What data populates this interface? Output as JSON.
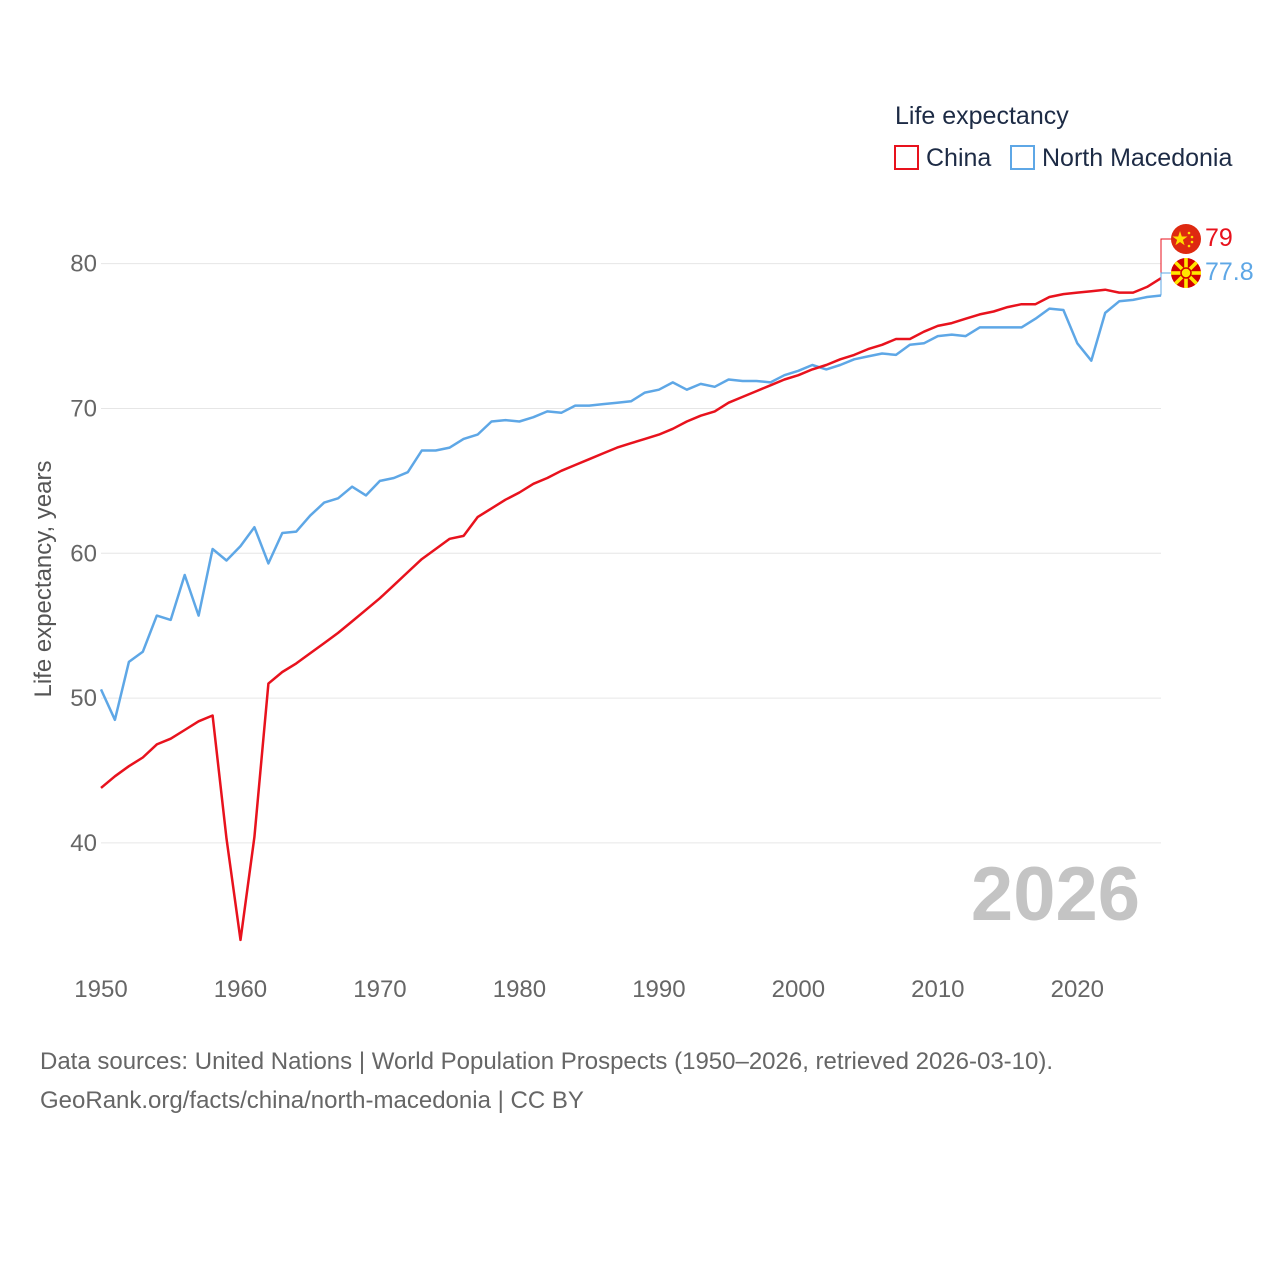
{
  "chart_data": {
    "type": "line",
    "title": "",
    "legend_title": "Life expectancy",
    "legend_position": "top-right",
    "ylabel": "Life expectancy, years",
    "xlabel": "",
    "xlim": [
      1950,
      2026
    ],
    "ylim": [
      31.5,
      83.5
    ],
    "x_ticks": [
      1950,
      1960,
      1970,
      1980,
      1990,
      2000,
      2010,
      2020
    ],
    "y_ticks": [
      40,
      50,
      60,
      70,
      80
    ],
    "grid": true,
    "current_year_label": "2026",
    "series": [
      {
        "name": "China",
        "color": "#e8121d",
        "flag": "china-flag",
        "end_label": "79",
        "x": [
          1950,
          1951,
          1952,
          1953,
          1954,
          1955,
          1956,
          1957,
          1958,
          1959,
          1960,
          1961,
          1962,
          1963,
          1964,
          1965,
          1966,
          1967,
          1968,
          1969,
          1970,
          1971,
          1972,
          1973,
          1974,
          1975,
          1976,
          1977,
          1978,
          1979,
          1980,
          1981,
          1982,
          1983,
          1984,
          1985,
          1986,
          1987,
          1988,
          1989,
          1990,
          1991,
          1992,
          1993,
          1994,
          1995,
          1996,
          1997,
          1998,
          1999,
          2000,
          2001,
          2002,
          2003,
          2004,
          2005,
          2006,
          2007,
          2008,
          2009,
          2010,
          2011,
          2012,
          2013,
          2014,
          2015,
          2016,
          2017,
          2018,
          2019,
          2020,
          2021,
          2022,
          2023,
          2024,
          2025,
          2026
        ],
        "values": [
          43.8,
          44.6,
          45.3,
          45.9,
          46.8,
          47.2,
          47.8,
          48.4,
          48.8,
          40.3,
          33.3,
          40.4,
          51.0,
          51.8,
          52.4,
          53.1,
          53.8,
          54.5,
          55.3,
          56.1,
          56.9,
          57.8,
          58.7,
          59.6,
          60.3,
          61.0,
          61.2,
          62.5,
          63.1,
          63.7,
          64.2,
          64.8,
          65.2,
          65.7,
          66.1,
          66.5,
          66.9,
          67.3,
          67.6,
          67.9,
          68.2,
          68.6,
          69.1,
          69.5,
          69.8,
          70.4,
          70.8,
          71.2,
          71.6,
          72.0,
          72.3,
          72.7,
          73.0,
          73.4,
          73.7,
          74.1,
          74.4,
          74.8,
          74.8,
          75.3,
          75.7,
          75.9,
          76.2,
          76.5,
          76.7,
          77.0,
          77.2,
          77.2,
          77.7,
          77.9,
          78.0,
          78.1,
          78.2,
          78.0,
          78.0,
          78.4,
          79.0
        ]
      },
      {
        "name": "North Macedonia",
        "color": "#5ea7e6",
        "flag": "north-macedonia-flag",
        "end_label": "77.8",
        "x": [
          1950,
          1951,
          1952,
          1953,
          1954,
          1955,
          1956,
          1957,
          1958,
          1959,
          1960,
          1961,
          1962,
          1963,
          1964,
          1965,
          1966,
          1967,
          1968,
          1969,
          1970,
          1971,
          1972,
          1973,
          1974,
          1975,
          1976,
          1977,
          1978,
          1979,
          1980,
          1981,
          1982,
          1983,
          1984,
          1985,
          1986,
          1987,
          1988,
          1989,
          1990,
          1991,
          1992,
          1993,
          1994,
          1995,
          1996,
          1997,
          1998,
          1999,
          2000,
          2001,
          2002,
          2003,
          2004,
          2005,
          2006,
          2007,
          2008,
          2009,
          2010,
          2011,
          2012,
          2013,
          2014,
          2015,
          2016,
          2017,
          2018,
          2019,
          2020,
          2021,
          2022,
          2023,
          2024,
          2025,
          2026
        ],
        "values": [
          50.6,
          48.5,
          52.5,
          53.2,
          55.7,
          55.4,
          58.5,
          55.7,
          60.3,
          59.5,
          60.5,
          61.8,
          59.3,
          61.4,
          61.5,
          62.6,
          63.5,
          63.8,
          64.6,
          64.0,
          65.0,
          65.2,
          65.6,
          67.1,
          67.1,
          67.3,
          67.9,
          68.2,
          69.1,
          69.2,
          69.1,
          69.4,
          69.8,
          69.7,
          70.2,
          70.2,
          70.3,
          70.4,
          70.5,
          71.1,
          71.3,
          71.8,
          71.3,
          71.7,
          71.5,
          72.0,
          71.9,
          71.9,
          71.8,
          72.3,
          72.6,
          73.0,
          72.7,
          73.0,
          73.4,
          73.6,
          73.8,
          73.7,
          74.4,
          74.5,
          75.0,
          75.1,
          75.0,
          75.6,
          75.6,
          75.6,
          75.6,
          76.2,
          76.9,
          76.8,
          74.5,
          73.3,
          76.6,
          77.4,
          77.5,
          77.7,
          77.8
        ]
      }
    ]
  },
  "footer": {
    "source_line": "Data sources: United Nations | World Population Prospects (1950–2026, retrieved 2026-03-10).",
    "credit_line": "GeoRank.org/facts/china/north-macedonia | CC BY"
  }
}
